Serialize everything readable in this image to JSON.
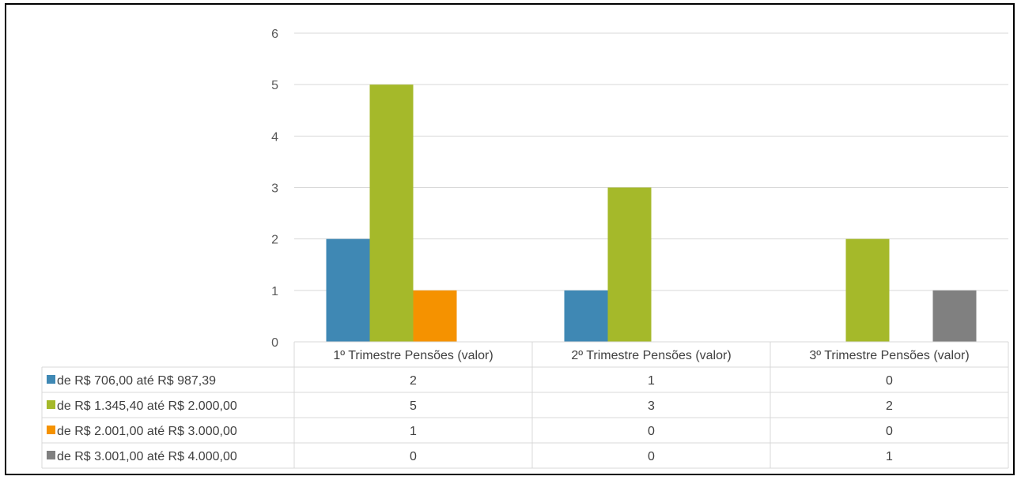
{
  "chart_data": {
    "type": "bar",
    "categories": [
      "1º Trimestre Pensões (valor)",
      "2º Trimestre Pensões (valor)",
      "3º Trimestre Pensões (valor)"
    ],
    "series": [
      {
        "name": "de R$ 706,00 até R$ 987,39",
        "color": "#3f88b4",
        "values": [
          2,
          1,
          0
        ]
      },
      {
        "name": "de R$ 1.345,40 até R$ 2.000,00",
        "color": "#a5b92a",
        "values": [
          5,
          3,
          2
        ]
      },
      {
        "name": "de R$ 2.001,00 até R$ 3.000,00",
        "color": "#f59200",
        "values": [
          1,
          0,
          0
        ]
      },
      {
        "name": "de R$ 3.001,00 até R$ 4.000,00",
        "color": "#808080",
        "values": [
          0,
          0,
          1
        ]
      }
    ],
    "ylim": [
      0,
      6
    ],
    "yticks": [
      "0",
      "1",
      "2",
      "3",
      "4",
      "5",
      "6"
    ],
    "grid": true,
    "legend": "data-table-below"
  }
}
